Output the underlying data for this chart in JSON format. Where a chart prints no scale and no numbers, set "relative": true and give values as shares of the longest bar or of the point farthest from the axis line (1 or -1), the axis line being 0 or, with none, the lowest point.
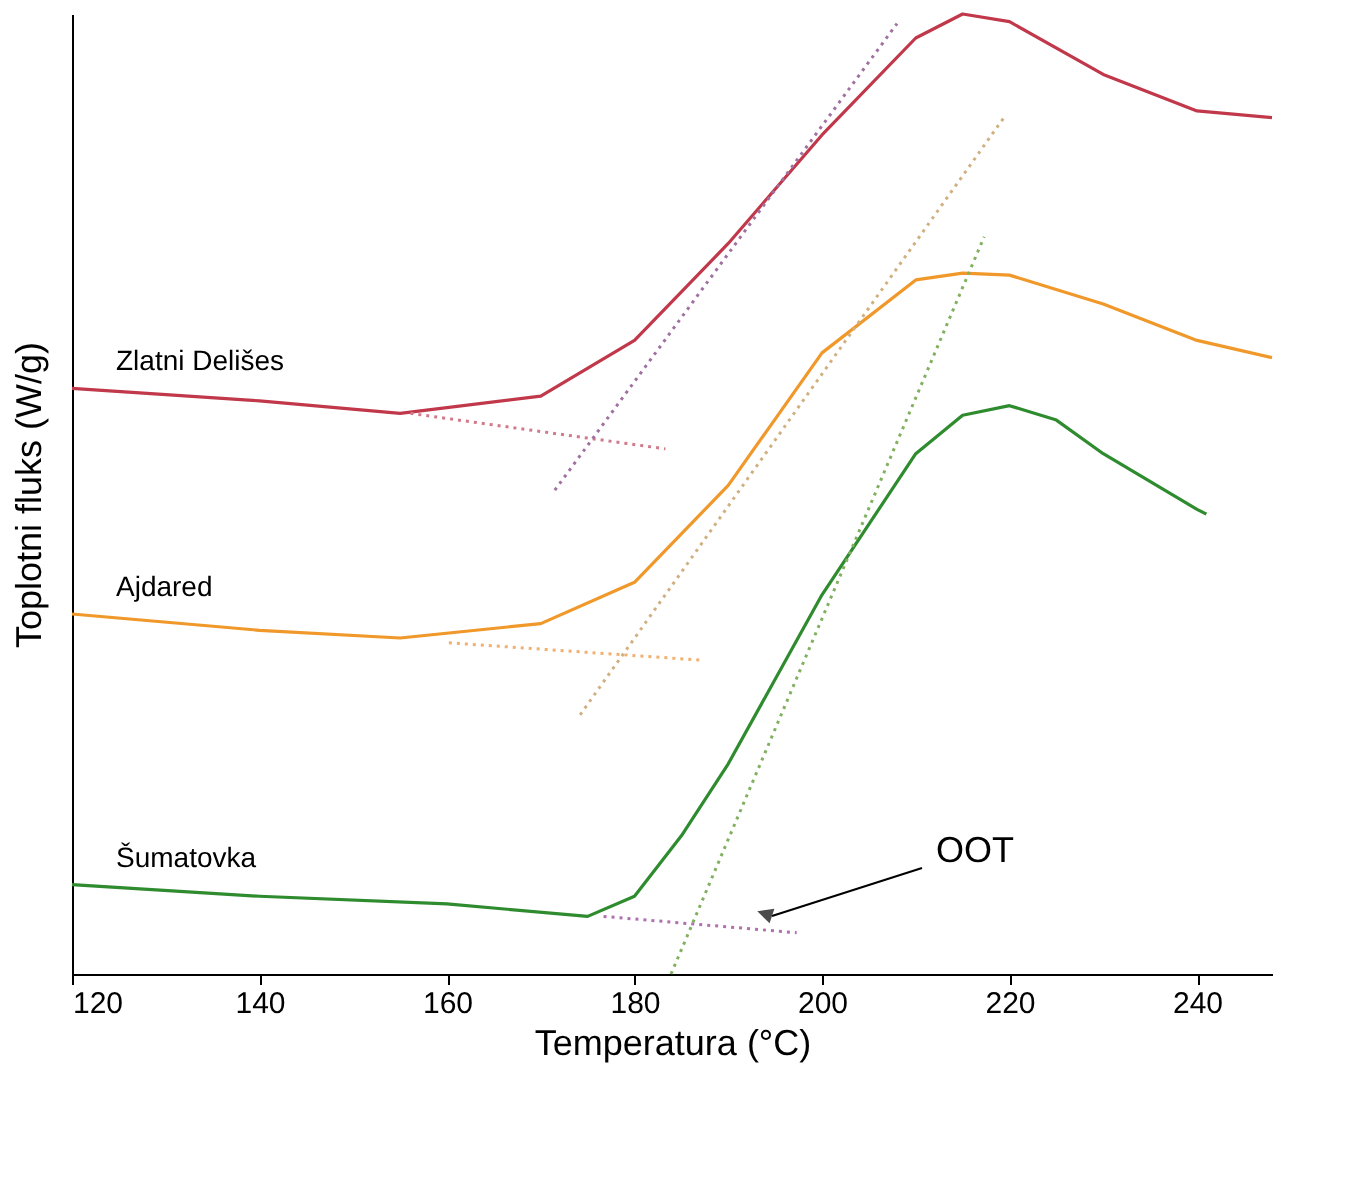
{
  "chart_data": {
    "type": "line",
    "relative": true,
    "xlabel": "Temperatura (°C)",
    "ylabel": "Toplotni fluks (W/g)",
    "xlim": [
      120,
      248
    ],
    "xticks": [
      120,
      140,
      160,
      180,
      200,
      220,
      240
    ],
    "tick_labels": "x",
    "grid": false,
    "marker": "none",
    "line_style": "solid",
    "annotations": [
      "OOT"
    ],
    "series": [
      {
        "name": "Zlatni Delišes",
        "color": "#c0384a",
        "x": [
          120,
          140,
          155,
          170,
          180,
          190,
          200,
          210,
          215,
          220,
          230,
          240,
          248
        ],
        "values": [
          0.61,
          0.597,
          0.584,
          0.602,
          0.66,
          0.761,
          0.874,
          0.975,
          1.0,
          0.992,
          0.937,
          0.899,
          0.892
        ]
      },
      {
        "name": "Ajdared",
        "color": "#f0982a",
        "x": [
          120,
          140,
          155,
          170,
          180,
          190,
          200,
          210,
          215,
          220,
          230,
          240,
          248
        ],
        "values": [
          0.375,
          0.358,
          0.35,
          0.365,
          0.408,
          0.509,
          0.647,
          0.723,
          0.73,
          0.728,
          0.698,
          0.66,
          0.642
        ]
      },
      {
        "name": "Šumatovka",
        "color": "#2e8b2e",
        "x": [
          120,
          140,
          160,
          175,
          180,
          185,
          190,
          200,
          210,
          215,
          220,
          225,
          230,
          240,
          241
        ],
        "values": [
          0.093,
          0.081,
          0.073,
          0.06,
          0.081,
          0.144,
          0.219,
          0.395,
          0.542,
          0.582,
          0.592,
          0.577,
          0.542,
          0.484,
          0.479
        ]
      },
      {
        "type": "line",
        "line_style": "dotted",
        "color": "#d07a8a",
        "x": [
          156.1,
          183.3
        ],
        "values": [
          0.584,
          0.547
        ]
      },
      {
        "type": "line",
        "line_style": "dotted",
        "color": "#a070a0",
        "x": [
          171.5,
          208
        ],
        "values": [
          0.504,
          0.99
        ]
      },
      {
        "type": "line",
        "line_style": "dotted",
        "color": "#f0b070",
        "x": [
          160.2,
          187
        ],
        "values": [
          0.345,
          0.327
        ]
      },
      {
        "type": "line",
        "line_style": "dotted",
        "color": "#d0b080",
        "x": [
          174.2,
          219.4
        ],
        "values": [
          0.27,
          0.892
        ]
      },
      {
        "type": "line",
        "line_style": "dotted",
        "color": "#b070b0",
        "x": [
          176.7,
          197.3
        ],
        "values": [
          0.06,
          0.043
        ]
      },
      {
        "type": "line",
        "line_style": "dotted",
        "color": "#80b060",
        "x": [
          183.9,
          217.3
        ],
        "values": [
          0,
          0.768
        ]
      }
    ]
  }
}
